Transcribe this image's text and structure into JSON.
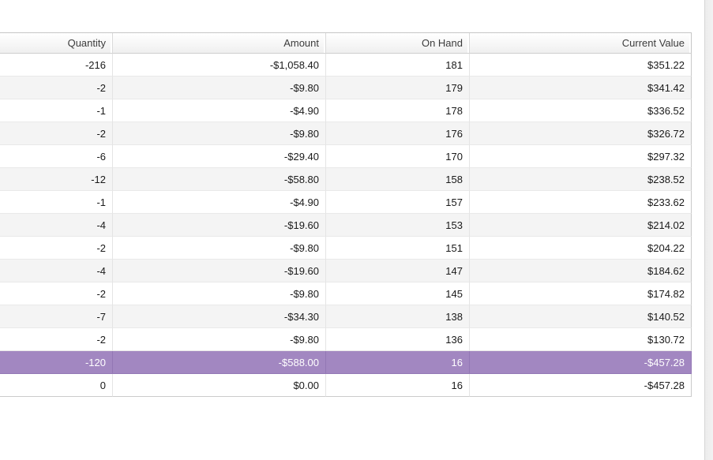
{
  "colors": {
    "selection_background": "#a287c1",
    "selection_text": "#ffffff",
    "alt_row_background": "#f4f4f4",
    "row_background": "#ffffff",
    "header_text": "#3c3c3c",
    "cell_text": "#1a1a1a"
  },
  "table": {
    "columns": [
      {
        "label": "Quantity"
      },
      {
        "label": "Amount"
      },
      {
        "label": "On Hand"
      },
      {
        "label": "Current Value"
      }
    ],
    "rows": [
      {
        "cells": [
          "-216",
          "-$1,058.40",
          "181",
          "$351.22"
        ],
        "selected": false
      },
      {
        "cells": [
          "-2",
          "-$9.80",
          "179",
          "$341.42"
        ],
        "selected": false
      },
      {
        "cells": [
          "-1",
          "-$4.90",
          "178",
          "$336.52"
        ],
        "selected": false
      },
      {
        "cells": [
          "-2",
          "-$9.80",
          "176",
          "$326.72"
        ],
        "selected": false
      },
      {
        "cells": [
          "-6",
          "-$29.40",
          "170",
          "$297.32"
        ],
        "selected": false
      },
      {
        "cells": [
          "-12",
          "-$58.80",
          "158",
          "$238.52"
        ],
        "selected": false
      },
      {
        "cells": [
          "-1",
          "-$4.90",
          "157",
          "$233.62"
        ],
        "selected": false
      },
      {
        "cells": [
          "-4",
          "-$19.60",
          "153",
          "$214.02"
        ],
        "selected": false
      },
      {
        "cells": [
          "-2",
          "-$9.80",
          "151",
          "$204.22"
        ],
        "selected": false
      },
      {
        "cells": [
          "-4",
          "-$19.60",
          "147",
          "$184.62"
        ],
        "selected": false
      },
      {
        "cells": [
          "-2",
          "-$9.80",
          "145",
          "$174.82"
        ],
        "selected": false
      },
      {
        "cells": [
          "-7",
          "-$34.30",
          "138",
          "$140.52"
        ],
        "selected": false
      },
      {
        "cells": [
          "-2",
          "-$9.80",
          "136",
          "$130.72"
        ],
        "selected": false
      },
      {
        "cells": [
          "-120",
          "-$588.00",
          "16",
          "-$457.28"
        ],
        "selected": true
      },
      {
        "cells": [
          "0",
          "$0.00",
          "16",
          "-$457.28"
        ],
        "selected": false
      }
    ]
  }
}
